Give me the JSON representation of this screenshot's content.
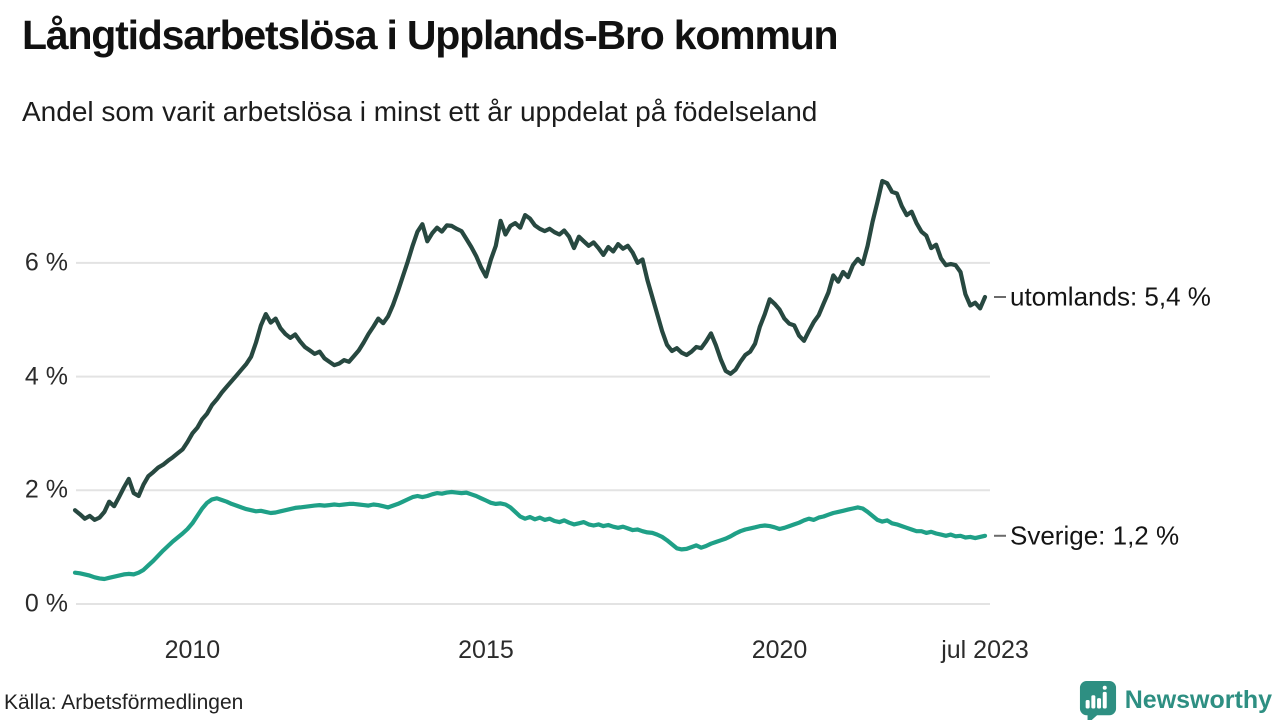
{
  "header": {
    "title": "Långtidsarbetslösa i Upplands-Bro kommun",
    "subtitle": "Andel som varit arbetslösa i minst ett år uppdelat på födelseland"
  },
  "footer": {
    "source": "Källa: Arbetsförmedlingen",
    "brand": "Newsworthy"
  },
  "colors": {
    "utomlands_line": "#274840",
    "sverige_line": "#1fa087",
    "gridline": "#e3e3e3",
    "tick_text": "#2b2b2b",
    "label_dash": "#6b6b6b",
    "brand_teal": "#2e8f82"
  },
  "chart_data": {
    "type": "line",
    "title": "Långtidsarbetslösa i Upplands-Bro kommun",
    "subtitle": "Andel som varit arbetslösa i minst ett år uppdelat på födelseland",
    "x_start": "2008-01",
    "x_end": "2023-07",
    "frequency": "monthly",
    "grid": "horizontal",
    "ylim": [
      0,
      7.6
    ],
    "unit": "%",
    "y_ticks": [
      {
        "label": "6 %",
        "value": 6
      },
      {
        "label": "4 %",
        "value": 4
      },
      {
        "label": "2 %",
        "value": 2
      },
      {
        "label": "0 %",
        "value": 0
      }
    ],
    "x_ticks": [
      {
        "label": "2010",
        "month_index": 24
      },
      {
        "label": "2015",
        "month_index": 84
      },
      {
        "label": "2020",
        "month_index": 144
      },
      {
        "label": "jul 2023",
        "month_index": 186
      }
    ],
    "series": [
      {
        "name": "utomlands",
        "end_label": "utomlands: 5,4 %",
        "end_value_text": "5,4 %",
        "color": "#274840",
        "values": [
          1.65,
          1.58,
          1.5,
          1.55,
          1.48,
          1.52,
          1.62,
          1.8,
          1.72,
          1.88,
          2.05,
          2.2,
          1.95,
          1.9,
          2.1,
          2.25,
          2.32,
          2.4,
          2.45,
          2.52,
          2.58,
          2.65,
          2.72,
          2.85,
          3.0,
          3.1,
          3.25,
          3.35,
          3.5,
          3.6,
          3.72,
          3.82,
          3.92,
          4.02,
          4.12,
          4.22,
          4.35,
          4.6,
          4.9,
          5.1,
          4.95,
          5.02,
          4.85,
          4.75,
          4.68,
          4.74,
          4.62,
          4.52,
          4.46,
          4.4,
          4.44,
          4.32,
          4.26,
          4.2,
          4.23,
          4.29,
          4.26,
          4.36,
          4.46,
          4.6,
          4.75,
          4.88,
          5.02,
          4.94,
          5.06,
          5.26,
          5.5,
          5.76,
          6.02,
          6.3,
          6.55,
          6.68,
          6.38,
          6.52,
          6.62,
          6.55,
          6.66,
          6.65,
          6.6,
          6.56,
          6.42,
          6.28,
          6.12,
          5.92,
          5.76,
          6.06,
          6.3,
          6.74,
          6.5,
          6.65,
          6.7,
          6.62,
          6.84,
          6.78,
          6.66,
          6.6,
          6.56,
          6.6,
          6.54,
          6.5,
          6.57,
          6.46,
          6.26,
          6.46,
          6.38,
          6.3,
          6.36,
          6.26,
          6.14,
          6.28,
          6.2,
          6.33,
          6.25,
          6.3,
          6.18,
          6.0,
          6.06,
          5.7,
          5.4,
          5.1,
          4.8,
          4.56,
          4.45,
          4.5,
          4.42,
          4.38,
          4.44,
          4.52,
          4.5,
          4.62,
          4.76,
          4.55,
          4.3,
          4.1,
          4.05,
          4.12,
          4.26,
          4.38,
          4.44,
          4.58,
          4.88,
          5.1,
          5.36,
          5.28,
          5.18,
          5.02,
          4.93,
          4.9,
          4.72,
          4.63,
          4.8,
          4.96,
          5.08,
          5.28,
          5.48,
          5.78,
          5.67,
          5.84,
          5.75,
          5.96,
          6.07,
          5.98,
          6.3,
          6.72,
          7.07,
          7.44,
          7.4,
          7.25,
          7.22,
          7.0,
          6.84,
          6.9,
          6.7,
          6.55,
          6.48,
          6.26,
          6.32,
          6.08,
          5.96,
          5.98,
          5.96,
          5.84,
          5.45,
          5.25,
          5.3,
          5.2,
          5.4
        ]
      },
      {
        "name": "Sverige",
        "end_label": "Sverige: 1,2 %",
        "end_value_text": "1,2 %",
        "color": "#1fa087",
        "values": [
          0.55,
          0.54,
          0.52,
          0.5,
          0.47,
          0.45,
          0.44,
          0.46,
          0.48,
          0.5,
          0.52,
          0.53,
          0.52,
          0.55,
          0.6,
          0.68,
          0.76,
          0.85,
          0.94,
          1.02,
          1.1,
          1.17,
          1.24,
          1.32,
          1.42,
          1.55,
          1.68,
          1.78,
          1.84,
          1.86,
          1.83,
          1.8,
          1.76,
          1.73,
          1.7,
          1.67,
          1.65,
          1.63,
          1.64,
          1.62,
          1.6,
          1.61,
          1.63,
          1.65,
          1.67,
          1.69,
          1.7,
          1.71,
          1.72,
          1.73,
          1.74,
          1.73,
          1.74,
          1.75,
          1.74,
          1.75,
          1.76,
          1.76,
          1.75,
          1.74,
          1.73,
          1.75,
          1.74,
          1.72,
          1.7,
          1.73,
          1.76,
          1.8,
          1.84,
          1.88,
          1.9,
          1.88,
          1.9,
          1.93,
          1.95,
          1.94,
          1.96,
          1.97,
          1.96,
          1.95,
          1.96,
          1.93,
          1.9,
          1.86,
          1.82,
          1.78,
          1.76,
          1.77,
          1.75,
          1.7,
          1.62,
          1.54,
          1.5,
          1.53,
          1.49,
          1.52,
          1.48,
          1.5,
          1.46,
          1.44,
          1.47,
          1.43,
          1.4,
          1.42,
          1.44,
          1.4,
          1.38,
          1.4,
          1.37,
          1.39,
          1.36,
          1.34,
          1.36,
          1.33,
          1.3,
          1.31,
          1.28,
          1.26,
          1.25,
          1.22,
          1.18,
          1.12,
          1.05,
          0.98,
          0.96,
          0.97,
          1.0,
          1.03,
          0.99,
          1.02,
          1.06,
          1.09,
          1.12,
          1.15,
          1.19,
          1.24,
          1.28,
          1.31,
          1.33,
          1.35,
          1.37,
          1.38,
          1.37,
          1.35,
          1.32,
          1.34,
          1.37,
          1.4,
          1.43,
          1.47,
          1.5,
          1.48,
          1.52,
          1.54,
          1.57,
          1.6,
          1.62,
          1.64,
          1.66,
          1.68,
          1.7,
          1.68,
          1.62,
          1.55,
          1.48,
          1.45,
          1.47,
          1.42,
          1.4,
          1.37,
          1.34,
          1.31,
          1.28,
          1.28,
          1.25,
          1.27,
          1.24,
          1.22,
          1.2,
          1.22,
          1.19,
          1.2,
          1.17,
          1.18,
          1.16,
          1.18,
          1.2
        ]
      }
    ]
  }
}
